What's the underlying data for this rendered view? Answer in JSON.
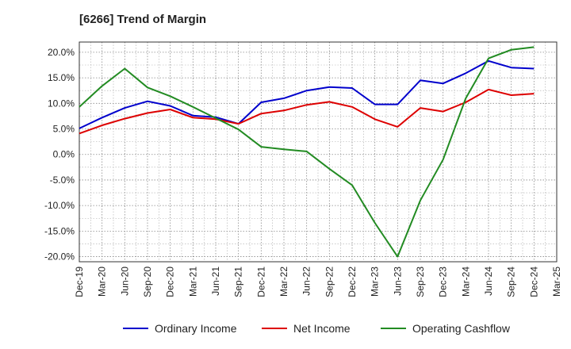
{
  "chart_data": {
    "type": "line",
    "title": "[6266]  Trend of Margin",
    "xlabel": "",
    "ylabel": "",
    "ylim": [
      -21,
      22
    ],
    "yticks": [
      20,
      15,
      10,
      5,
      0,
      -5,
      -10,
      -15,
      -20
    ],
    "ytick_labels": [
      "20.0%",
      "15.0%",
      "10.0%",
      "5.0%",
      "0.0%",
      "-5.0%",
      "-10.0%",
      "-15.0%",
      "-20.0%"
    ],
    "x": [
      "Dec-19",
      "Mar-20",
      "Jun-20",
      "Sep-20",
      "Dec-20",
      "Mar-21",
      "Jun-21",
      "Sep-21",
      "Dec-21",
      "Mar-22",
      "Jun-22",
      "Sep-22",
      "Dec-22",
      "Mar-23",
      "Jun-23",
      "Sep-23",
      "Dec-23",
      "Mar-24",
      "Jun-24",
      "Sep-24",
      "Dec-24",
      "Mar-25"
    ],
    "grid": true,
    "legend_position": "bottom",
    "series": [
      {
        "name": "Ordinary Income",
        "color": "#0000cc",
        "values": [
          5.1,
          7.2,
          9.1,
          10.4,
          9.5,
          7.6,
          7.3,
          6.0,
          10.2,
          11.0,
          12.5,
          13.2,
          13.0,
          9.8,
          9.8,
          14.5,
          13.9,
          15.9,
          18.3,
          17.0,
          16.8,
          null
        ]
      },
      {
        "name": "Net Income",
        "color": "#dd0000",
        "values": [
          4.1,
          5.7,
          7.0,
          8.1,
          8.8,
          7.2,
          6.9,
          6.0,
          8.0,
          8.6,
          9.7,
          10.3,
          9.3,
          6.9,
          5.4,
          9.1,
          8.4,
          10.2,
          12.7,
          11.6,
          11.9,
          null
        ]
      },
      {
        "name": "Operating Cashflow",
        "color": "#228b22",
        "values": [
          9.3,
          13.4,
          16.8,
          13.1,
          11.4,
          9.3,
          7.1,
          4.9,
          1.5,
          1.0,
          0.6,
          -2.8,
          -6.0,
          -13.4,
          -20.0,
          -9.0,
          -1.0,
          11.0,
          18.8,
          20.5,
          21.0,
          null
        ]
      }
    ]
  }
}
